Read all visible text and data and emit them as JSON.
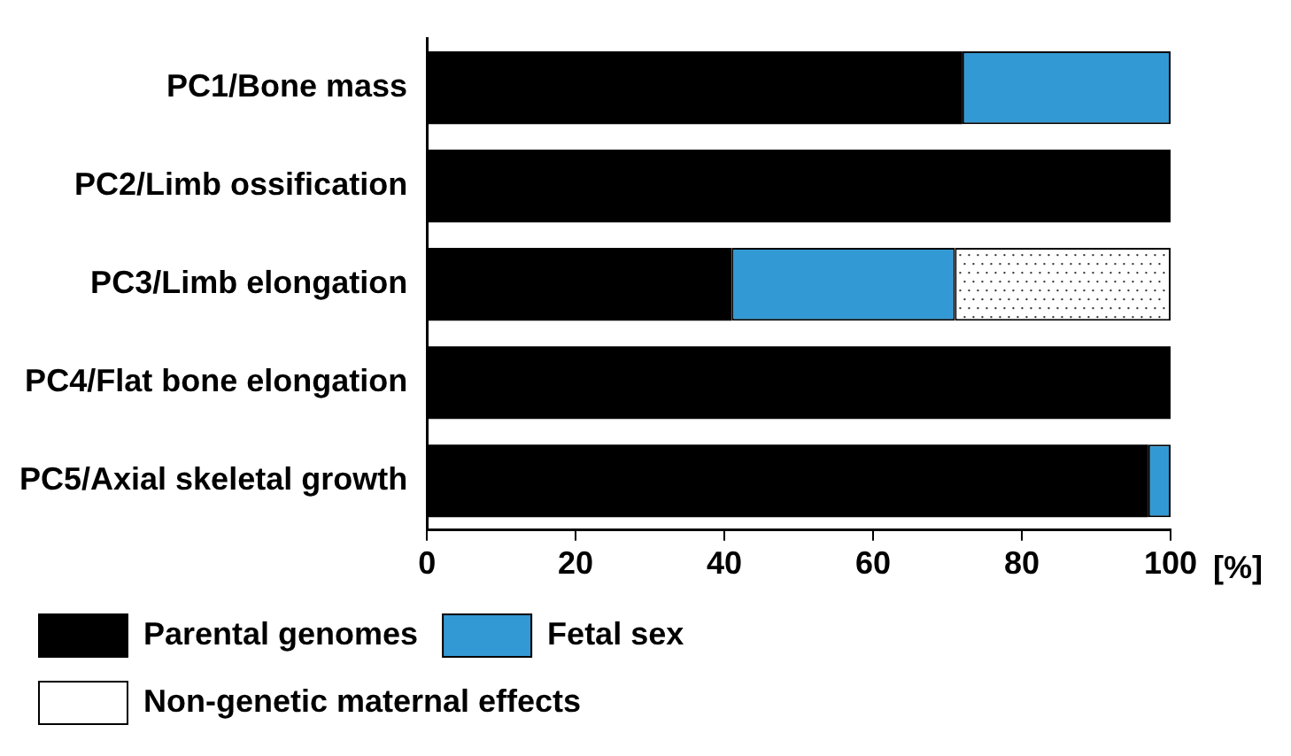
{
  "chart_data": {
    "type": "bar",
    "orientation": "horizontal",
    "stacked": true,
    "xlabel": "[%]",
    "categories": [
      "PC1/Bone mass",
      "PC2/Limb ossification",
      "PC3/Limb elongation",
      "PC4/Flat bone elongation",
      "PC5/Axial skeletal growth"
    ],
    "series": [
      {
        "name": "Parental genomes",
        "color": "#000000",
        "values": [
          72,
          100,
          41,
          100,
          97
        ]
      },
      {
        "name": "Fetal sex",
        "color": "#3399d4",
        "values": [
          28,
          0,
          30,
          0,
          3
        ]
      },
      {
        "name": "Non-genetic maternal effects",
        "color": "#ffffff",
        "values": [
          0,
          0,
          29,
          0,
          0
        ]
      }
    ],
    "xlim": [
      0,
      100
    ],
    "xticks": [
      0,
      20,
      40,
      60,
      80,
      100
    ],
    "grid": false,
    "legend": "bottom"
  }
}
